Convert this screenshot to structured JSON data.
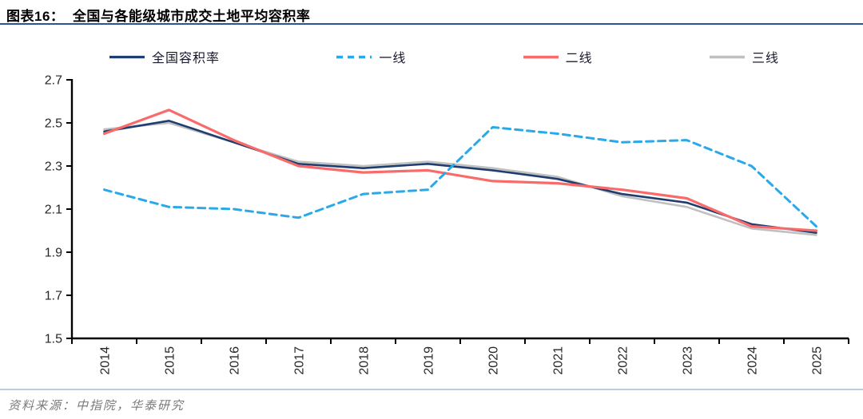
{
  "header": {
    "title": "图表16：  全国与各能级城市成交土地平均容积率"
  },
  "footer": {
    "source": "资料来源：中指院，华泰研究"
  },
  "colors": {
    "title_rule": "#2a5494",
    "footer_rule": "#b9cde3",
    "axis": "#000000",
    "tick_label": "#262626"
  },
  "chart_data": {
    "type": "line",
    "title": "全国与各能级城市成交土地平均容积率",
    "categories": [
      "2014",
      "2015",
      "2016",
      "2017",
      "2018",
      "2019",
      "2020",
      "2021",
      "2022",
      "2023",
      "2024",
      "2025"
    ],
    "series": [
      {
        "name": "全国容积率",
        "color": "#1f3d6e",
        "style": "solid",
        "values": [
          2.46,
          2.51,
          2.41,
          2.31,
          2.29,
          2.31,
          2.28,
          2.24,
          2.17,
          2.13,
          2.03,
          1.99
        ]
      },
      {
        "name": "一线",
        "color": "#29a9ea",
        "style": "dashed",
        "values": [
          2.19,
          2.11,
          2.1,
          2.06,
          2.17,
          2.19,
          2.48,
          2.45,
          2.41,
          2.42,
          2.3,
          2.02
        ]
      },
      {
        "name": "二线",
        "color": "#f96b6b",
        "style": "solid",
        "values": [
          2.45,
          2.56,
          2.42,
          2.3,
          2.27,
          2.28,
          2.23,
          2.22,
          2.19,
          2.15,
          2.02,
          2.0
        ]
      },
      {
        "name": "三线",
        "color": "#c0c0c0",
        "style": "solid",
        "values": [
          2.47,
          2.5,
          2.41,
          2.32,
          2.3,
          2.32,
          2.29,
          2.25,
          2.16,
          2.11,
          2.01,
          1.98
        ]
      }
    ],
    "ylim": [
      1.5,
      2.7
    ],
    "yticks": [
      "1.5",
      "1.7",
      "1.9",
      "2.1",
      "2.3",
      "2.5",
      "2.7"
    ],
    "grid": false,
    "legend_position": "top",
    "x_label_rotation": -90
  }
}
